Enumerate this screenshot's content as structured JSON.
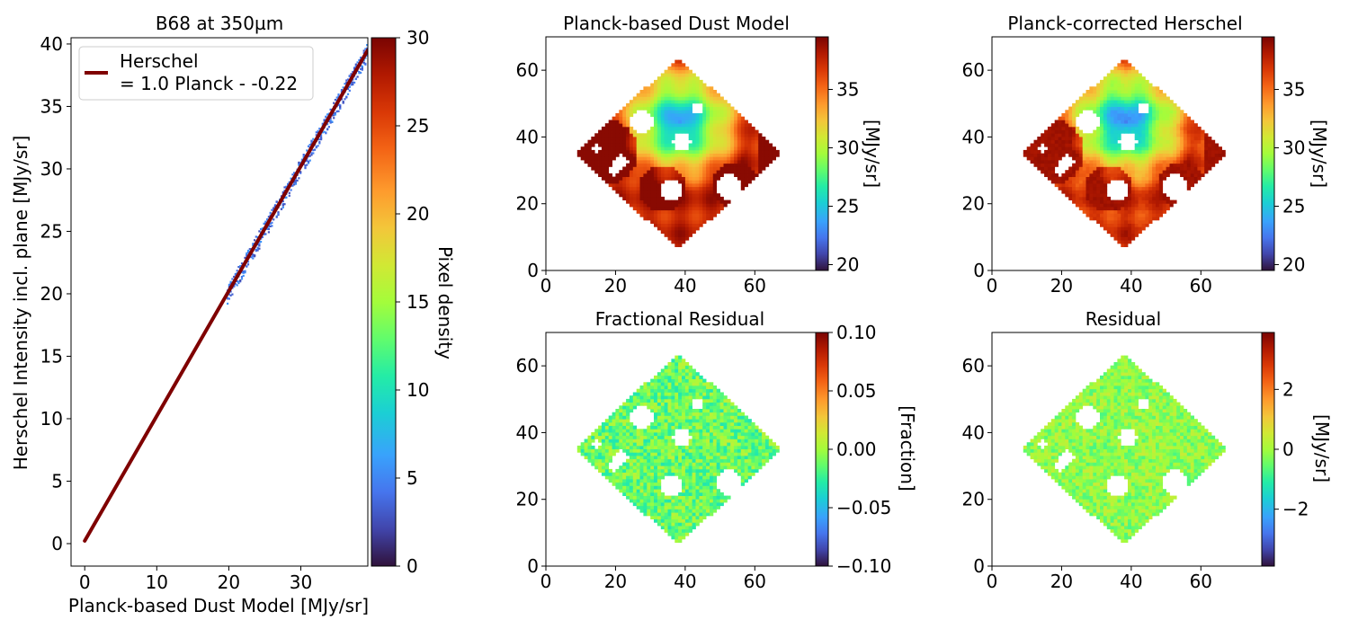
{
  "figure": {
    "panels": {
      "scatter": {
        "title": "B68 at 350µm",
        "xlabel": "Planck-based Dust Model [MJy/sr]",
        "ylabel": "Herschel Intensity incl. plane [MJy/sr]",
        "legend_label_line1": "Herschel",
        "legend_label_line2": "= 1.0 Planck - -0.22",
        "colorbar_label": "Pixel density"
      },
      "dust_model": {
        "title": "Planck-based Dust Model",
        "colorbar_label": "[MJy/sr]"
      },
      "corrected": {
        "title": "Planck-corrected Herschel",
        "colorbar_label": "[MJy/sr]"
      },
      "frac_resid": {
        "title": "Fractional Residual",
        "colorbar_label": "[Fraction]"
      },
      "resid": {
        "title": "Residual",
        "colorbar_label": "[MJy/sr]"
      }
    }
  },
  "chart_data": [
    {
      "type": "scatter",
      "title": "B68 at 350µm",
      "xlabel": "Planck-based Dust Model [MJy/sr]",
      "ylabel": "Herschel Intensity incl. plane [MJy/sr]",
      "xlim": [
        -1.9,
        39.3
      ],
      "ylim": [
        -1.8,
        40.5
      ],
      "xticks": [
        0,
        10,
        20,
        30
      ],
      "yticks": [
        0,
        5,
        10,
        15,
        20,
        25,
        30,
        35,
        40
      ],
      "point_cloud": {
        "x_range": [
          19.7,
          39.3
        ],
        "density_colormap": "turbo",
        "density_range": [
          0,
          30
        ]
      },
      "fit_line": {
        "name": "Herschel\n= 1.0 Planck - -0.22",
        "slope": 1.0,
        "intercept": 0.22,
        "x_range": [
          0,
          39.3
        ],
        "color": "#7f0000"
      },
      "legend": "top-left",
      "colorbar": {
        "label": "Pixel density",
        "range": [
          0,
          30
        ],
        "ticks": [
          0,
          5,
          10,
          15,
          20,
          25,
          30
        ],
        "colormap": "turbo"
      }
    },
    {
      "type": "heatmap",
      "title": "Planck-based Dust Model",
      "xlim": [
        0,
        78
      ],
      "ylim": [
        0,
        70
      ],
      "xticks": [
        0,
        20,
        40,
        60
      ],
      "yticks": [
        0,
        20,
        40,
        60
      ],
      "colorbar": {
        "label": "[MJy/sr]",
        "range": [
          19.5,
          39.5
        ],
        "ticks": [
          20,
          25,
          30,
          35
        ],
        "colormap": "turbo"
      }
    },
    {
      "type": "heatmap",
      "title": "Planck-corrected Herschel",
      "xlim": [
        0,
        78
      ],
      "ylim": [
        0,
        70
      ],
      "xticks": [
        0,
        20,
        40,
        60
      ],
      "yticks": [
        0,
        20,
        40,
        60
      ],
      "colorbar": {
        "label": "[MJy/sr]",
        "range": [
          19.5,
          39.5
        ],
        "ticks": [
          20,
          25,
          30,
          35
        ],
        "colormap": "turbo"
      }
    },
    {
      "type": "heatmap",
      "title": "Fractional Residual",
      "xlim": [
        0,
        78
      ],
      "ylim": [
        0,
        70
      ],
      "xticks": [
        0,
        20,
        40,
        60
      ],
      "yticks": [
        0,
        20,
        40,
        60
      ],
      "colorbar": {
        "label": "[Fraction]",
        "range": [
          -0.1,
          0.1
        ],
        "ticks": [
          0.1,
          0.05,
          0.0,
          -0.05,
          -0.1
        ],
        "tick_labels": [
          "0.10",
          "0.05",
          "0.00",
          "−0.05",
          "−0.10"
        ],
        "colormap": "turbo"
      }
    },
    {
      "type": "heatmap",
      "title": "Residual",
      "xlim": [
        0,
        78
      ],
      "ylim": [
        0,
        70
      ],
      "xticks": [
        0,
        20,
        40,
        60
      ],
      "yticks": [
        0,
        20,
        40,
        60
      ],
      "colorbar": {
        "label": "[MJy/sr]",
        "range": [
          -3.9,
          3.9
        ],
        "ticks": [
          2,
          0,
          -2
        ],
        "tick_labels": [
          "2",
          "0",
          "−2"
        ],
        "colormap": "turbo"
      }
    }
  ]
}
